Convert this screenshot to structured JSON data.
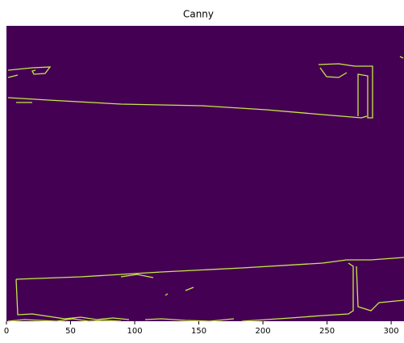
{
  "chart_data": {
    "type": "image",
    "title": "Canny",
    "xlim": [
      0,
      310
    ],
    "xticks": [
      0,
      50,
      100,
      150,
      200,
      250,
      300
    ]
  }
}
